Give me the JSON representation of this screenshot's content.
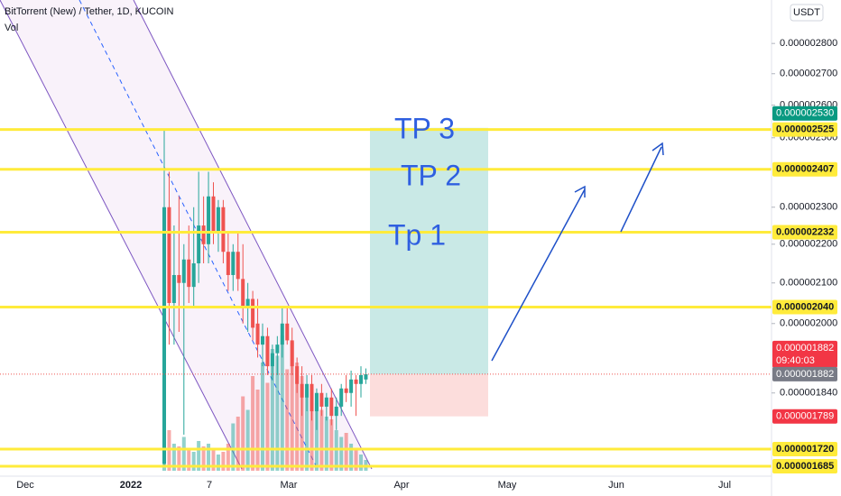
{
  "chart_data": {
    "type": "candlestick",
    "title": "BitTorrent (New) / Tether, 1D, KUCOIN",
    "subtitle": "Vol",
    "currency": "USDT",
    "log_scale": true,
    "ylim": [
      1.665e-06,
      2.95e-06
    ],
    "yticks": [
      {
        "value": 2.8e-06,
        "label": "0.000002800"
      },
      {
        "value": 2.7e-06,
        "label": "0.000002700"
      },
      {
        "value": 2.6e-06,
        "label": "0.000002600"
      },
      {
        "value": 2.5e-06,
        "label": "0.000002500"
      },
      {
        "value": 2.3e-06,
        "label": "0.000002300"
      },
      {
        "value": 2.2e-06,
        "label": "0.000002200"
      },
      {
        "value": 2.1e-06,
        "label": "0.000002100"
      },
      {
        "value": 2e-06,
        "label": "0.000002000"
      },
      {
        "value": 1.84e-06,
        "label": "0.000001840"
      }
    ],
    "xticks": [
      "Dec",
      "2022",
      "7",
      "Mar",
      "Apr",
      "May",
      "Jun",
      "Jul"
    ],
    "up_color": "#26a69a",
    "down_color": "#ef5350",
    "level_color": "#ffeb3b",
    "open": [
      1.69e-06,
      2.3e-06,
      2.05e-06,
      2.12e-06,
      2.1e-06,
      2.16e-06,
      2.09e-06,
      2.15e-06,
      2.25e-06,
      2.2e-06,
      2.33e-06,
      2.23e-06,
      2.3e-06,
      2.18e-06,
      2.12e-06,
      2.18e-06,
      2.11e-06,
      2.04e-06,
      2.06e-06,
      2e-06,
      1.95e-06,
      1.97e-06,
      1.9e-06,
      1.93e-06,
      1.95e-06,
      2e-06,
      1.96e-06,
      1.9e-06,
      1.86e-06,
      1.83e-06,
      1.86e-06,
      1.8e-06,
      1.84e-06,
      1.81e-06,
      1.83e-06,
      1.79e-06,
      1.81e-06,
      1.85e-06,
      1.84e-06,
      1.87e-06,
      1.86e-06,
      1.87e-06
    ],
    "high": [
      2.525e-06,
      2.4e-06,
      2.25e-06,
      2.33e-06,
      2.2e-06,
      2.25e-06,
      2.3e-06,
      2.4e-06,
      2.33e-06,
      2.4e-06,
      2.37e-06,
      2.32e-06,
      2.32e-06,
      2.23e-06,
      2.2e-06,
      2.23e-06,
      2.2e-06,
      2.1e-06,
      2.08e-06,
      2.06e-06,
      2e-06,
      1.99e-06,
      1.95e-06,
      1.97e-06,
      2.04e-06,
      2.04e-06,
      1.99e-06,
      1.92e-06,
      1.9e-06,
      1.88e-06,
      1.88e-06,
      1.85e-06,
      1.86e-06,
      1.84e-06,
      1.85e-06,
      1.83e-06,
      1.86e-06,
      1.88e-06,
      1.89e-06,
      1.88e-06,
      1.9e-06,
      1.895e-06
    ],
    "low": [
      1.685e-06,
      1.95e-06,
      1.95e-06,
      1.98e-06,
      1.75e-06,
      2.05e-06,
      2.04e-06,
      2.1e-06,
      2.15e-06,
      2.15e-06,
      2.2e-06,
      2.18e-06,
      2.15e-06,
      2.08e-06,
      2.08e-06,
      2.08e-06,
      2e-06,
      1.98e-06,
      1.96e-06,
      1.92e-06,
      1.9e-06,
      1.88e-06,
      1.87e-06,
      1.88e-06,
      1.92e-06,
      1.95e-06,
      1.88e-06,
      1.84e-06,
      1.79e-06,
      1.8e-06,
      1.78e-06,
      1.76e-06,
      1.79e-06,
      1.78e-06,
      1.77e-06,
      1.76e-06,
      1.79e-06,
      1.82e-06,
      1.81e-06,
      1.79e-06,
      1.83e-06,
      1.86e-06
    ],
    "close": [
      2.3e-06,
      2.05e-06,
      2.12e-06,
      2.1e-06,
      2.16e-06,
      2.09e-06,
      2.15e-06,
      2.25e-06,
      2.2e-06,
      2.33e-06,
      2.23e-06,
      2.3e-06,
      2.18e-06,
      2.12e-06,
      2.18e-06,
      2.11e-06,
      2.04e-06,
      2.06e-06,
      1.99e-06,
      1.95e-06,
      1.97e-06,
      1.9e-06,
      1.93e-06,
      1.95e-06,
      2e-06,
      1.96e-06,
      1.9e-06,
      1.86e-06,
      1.83e-06,
      1.86e-06,
      1.8e-06,
      1.84e-06,
      1.81e-06,
      1.83e-06,
      1.79e-06,
      1.81e-06,
      1.85e-06,
      1.84e-06,
      1.87e-06,
      1.86e-06,
      1.88e-06,
      1.882e-06
    ],
    "volume": [
      95,
      30,
      20,
      18,
      25,
      15,
      14,
      22,
      18,
      20,
      15,
      12,
      14,
      20,
      35,
      40,
      55,
      45,
      70,
      60,
      80,
      65,
      90,
      85,
      100,
      75,
      95,
      80,
      70,
      60,
      55,
      50,
      45,
      40,
      38,
      30,
      25,
      28,
      20,
      15,
      12,
      8
    ],
    "levels": [
      {
        "value": 2.525e-06,
        "label": "0.000002525"
      },
      {
        "value": 2.407e-06,
        "label": "0.000002407"
      },
      {
        "value": 2.232e-06,
        "label": "0.000002232"
      },
      {
        "value": 2.04e-06,
        "label": "0.000002040"
      },
      {
        "value": 1.72e-06,
        "label": "0.000001720"
      },
      {
        "value": 1.685e-06,
        "label": "0.000001685"
      }
    ],
    "position": {
      "target": {
        "value": 2.53e-06,
        "label": "0.000002530"
      },
      "entry": {
        "value": 1.882e-06,
        "label": "0.000001882"
      },
      "stop": {
        "value": 1.789e-06,
        "label": "0.000001789"
      }
    },
    "last_price": {
      "value": 1.882e-06,
      "label": "0.000001882",
      "countdown": "09:40:03"
    },
    "annotations": [
      "TP 3",
      "TP 2",
      "Tp 1"
    ]
  }
}
